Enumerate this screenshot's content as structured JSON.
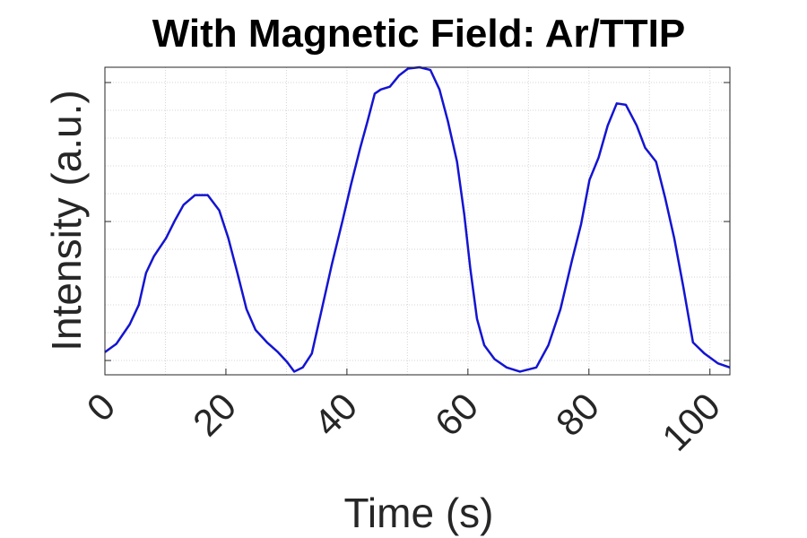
{
  "chart_data": {
    "type": "line",
    "title": "With Magnetic Field: Ar/TTIP",
    "xlabel": "Time (s)",
    "ylabel": "Intensity (a.u.)",
    "x": [
      0,
      1.9,
      4.1,
      5.6,
      6.8,
      8.1,
      10.1,
      11.6,
      13.0,
      14.9,
      17.0,
      18.9,
      20.4,
      21.9,
      23.4,
      24.9,
      26.8,
      28.6,
      30.1,
      31.3,
      32.7,
      34.2,
      35.7,
      37.5,
      39.3,
      40.7,
      42.2,
      43.4,
      44.6,
      45.6,
      47.1,
      48.6,
      50.1,
      52.0,
      53.8,
      55.3,
      56.7,
      58.2,
      59.4,
      60.4,
      61.5,
      62.7,
      64.4,
      66.4,
      68.6,
      71.3,
      73.3,
      75.3,
      77.2,
      78.7,
      80.1,
      81.6,
      83.1,
      84.6,
      86.1,
      87.9,
      89.3,
      91.1,
      92.6,
      94.1,
      95.6,
      97.2,
      99.1,
      101.3,
      103.3
    ],
    "series": [
      {
        "name": "Ar/TTIP",
        "color": "#1414d2",
        "values": [
          0.06,
          0.12,
          0.26,
          0.4,
          0.63,
          0.75,
          0.88,
          1.01,
          1.12,
          1.19,
          1.19,
          1.08,
          0.88,
          0.63,
          0.37,
          0.22,
          0.13,
          0.06,
          -0.01,
          -0.08,
          -0.05,
          0.05,
          0.34,
          0.69,
          1.01,
          1.27,
          1.53,
          1.72,
          1.92,
          1.95,
          1.97,
          2.05,
          2.1,
          2.11,
          2.09,
          1.95,
          1.72,
          1.43,
          1.05,
          0.66,
          0.3,
          0.11,
          0.01,
          -0.05,
          -0.08,
          -0.05,
          0.11,
          0.37,
          0.72,
          0.98,
          1.3,
          1.46,
          1.69,
          1.85,
          1.84,
          1.69,
          1.53,
          1.43,
          1.17,
          0.88,
          0.53,
          0.13,
          0.05,
          -0.02,
          -0.05
        ]
      }
    ],
    "xlim": [
      0,
      103.3
    ],
    "ylim": [
      -0.103,
      2.11
    ],
    "xticks": [
      0,
      20,
      40,
      60,
      80,
      100
    ],
    "yticks": [
      0,
      1,
      2
    ],
    "xminorticks": [
      10,
      30,
      50,
      70,
      90
    ],
    "yminorticks": [
      0.2,
      0.4,
      0.6,
      0.8,
      1.2,
      1.4,
      1.6,
      1.8
    ],
    "grid": true
  }
}
